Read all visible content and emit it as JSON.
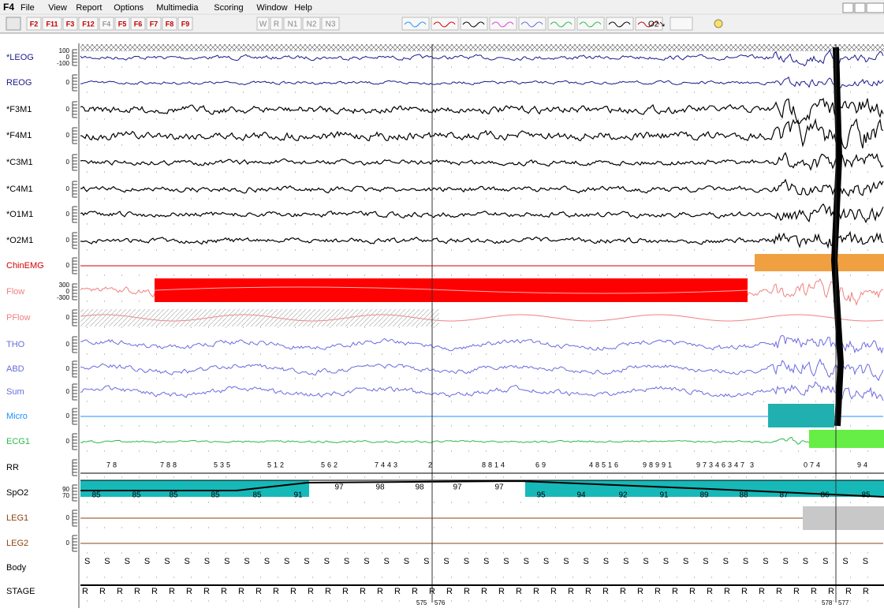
{
  "app": {
    "logo": "F4",
    "menu": [
      "File",
      "View",
      "Report",
      "Options",
      "Multimedia",
      "Scoring",
      "Window",
      "Help"
    ]
  },
  "toolbar": {
    "keys": [
      "F2",
      "F11",
      "F3",
      "F12",
      "F4",
      "F5",
      "F6",
      "F7",
      "F8",
      "F9"
    ],
    "stages": [
      "W",
      "R",
      "N1",
      "N2",
      "N3"
    ],
    "o2": "O2↘"
  },
  "channels": [
    {
      "label": "*LEOG",
      "color": "#1a1a8c",
      "ticks": [
        "100",
        "0",
        "-100"
      ]
    },
    {
      "label": "REOG",
      "color": "#1a1a8c",
      "ticks": [
        "0"
      ]
    },
    {
      "label": "*F3M1",
      "color": "#000000",
      "ticks": [
        "0"
      ]
    },
    {
      "label": "*F4M1",
      "color": "#000000",
      "ticks": [
        "0"
      ]
    },
    {
      "label": "*C3M1",
      "color": "#000000",
      "ticks": [
        "0"
      ]
    },
    {
      "label": "*C4M1",
      "color": "#000000",
      "ticks": [
        "0"
      ]
    },
    {
      "label": "*O1M1",
      "color": "#000000",
      "ticks": [
        "0"
      ]
    },
    {
      "label": "*O2M1",
      "color": "#000000",
      "ticks": [
        "0"
      ]
    },
    {
      "label": "ChinEMG",
      "color": "#d40000",
      "ticks": [
        "0"
      ]
    },
    {
      "label": "Flow",
      "color": "#f08080",
      "ticks": [
        "300",
        "0",
        "-300"
      ]
    },
    {
      "label": "PFlow",
      "color": "#f08080",
      "ticks": [
        "0"
      ]
    },
    {
      "label": "THO",
      "color": "#6a6ae0",
      "ticks": [
        "0"
      ]
    },
    {
      "label": "ABD",
      "color": "#6a6ae0",
      "ticks": [
        "0"
      ]
    },
    {
      "label": "Sum",
      "color": "#6a6ae0",
      "ticks": [
        "0"
      ]
    },
    {
      "label": "Micro",
      "color": "#1e90ff",
      "ticks": [
        "0"
      ]
    },
    {
      "label": "ECG1",
      "color": "#2db84b",
      "ticks": [
        "0"
      ]
    },
    {
      "label": "RR",
      "color": "#000000",
      "ticks": []
    },
    {
      "label": "SpO2",
      "color": "#000000",
      "ticks": [
        "90",
        "70"
      ]
    },
    {
      "label": "LEG1",
      "color": "#8b4513",
      "ticks": [
        "0"
      ]
    },
    {
      "label": "LEG2",
      "color": "#8b4513",
      "ticks": [
        "0"
      ]
    },
    {
      "label": "Body",
      "color": "#000000",
      "ticks": []
    },
    {
      "label": "STAGE",
      "color": "#000000",
      "ticks": []
    }
  ],
  "rr_labels": [
    "78",
    "788",
    "535",
    "512",
    "562",
    "7443",
    "2",
    "8814",
    "69",
    "48516",
    "98991",
    "97346347",
    "3",
    "074",
    "94"
  ],
  "spo2_values": [
    "85",
    "85",
    "85",
    "85",
    "85",
    "91",
    "97",
    "98",
    "98",
    "97",
    "97",
    "95",
    "94",
    "92",
    "91",
    "89",
    "88",
    "87",
    "86",
    "85"
  ],
  "body_marks": [
    "S",
    "S",
    "S",
    "S",
    "S",
    "S",
    "S",
    "S",
    "S",
    "S",
    "S",
    "S",
    "S",
    "S",
    "S",
    "S",
    "S",
    "S",
    "S",
    "S",
    "S",
    "S",
    "S",
    "S",
    "S",
    "S",
    "S",
    "S",
    "S",
    "S",
    "S",
    "S",
    "S",
    "S",
    "S",
    "S",
    "S",
    "S",
    "S",
    "S"
  ],
  "stage_marks": [
    "R",
    "R",
    "R",
    "R",
    "R",
    "R",
    "R",
    "R",
    "R",
    "R",
    "R",
    "R",
    "R",
    "R",
    "R",
    "R",
    "R",
    "R",
    "R",
    "R",
    "R",
    "R",
    "R",
    "R",
    "R",
    "R",
    "R",
    "R",
    "R",
    "R",
    "R",
    "R",
    "R",
    "R",
    "R",
    "R",
    "R",
    "R",
    "R",
    "R",
    "R",
    "R",
    "R",
    "R",
    "R",
    "R"
  ],
  "epochs": [
    "575",
    "576",
    "578",
    "577"
  ]
}
